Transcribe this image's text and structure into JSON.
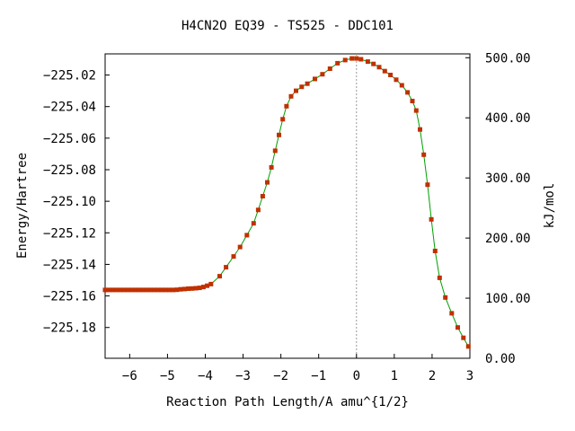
{
  "chart_data": {
    "type": "scatter",
    "title": "H4CN2O   EQ39 - TS525 - DDC101",
    "xlabel": "Reaction Path Length/A amu^{1/2}",
    "ylabel_left": "Energy/Hartree",
    "ylabel_right": "kJ/mol",
    "xlim": [
      -6.65,
      3.0
    ],
    "ylim_left": [
      -225.1995,
      -225.0066
    ],
    "ylim_right": [
      0.0,
      506.4
    ],
    "x_ticks": [
      -6,
      -5,
      -4,
      -3,
      -2,
      -1,
      0,
      1,
      2,
      3
    ],
    "x_tick_labels": [
      "−6",
      "−5",
      "−4",
      "−3",
      "−2",
      "−1",
      "0",
      "1",
      "2",
      "3"
    ],
    "y_left_ticks": [
      -225.18,
      -225.16,
      -225.14,
      -225.12,
      -225.1,
      -225.08,
      -225.06,
      -225.04,
      -225.02
    ],
    "y_left_tick_labels": [
      "−225.18",
      "−225.16",
      "−225.14",
      "−225.12",
      "−225.10",
      "−225.08",
      "−225.06",
      "−225.04",
      "−225.02"
    ],
    "y_right_ticks": [
      0,
      100,
      200,
      300,
      400,
      500
    ],
    "y_right_tick_labels": [
      "0.00",
      "100.00",
      "200.00",
      "300.00",
      "400.00",
      "500.00"
    ],
    "ts_marker_x": 0,
    "grid": false,
    "colors": {
      "points": "#c03000",
      "curve": "#00a000",
      "ts_line": "#999999",
      "axis": "#000000"
    },
    "series": [
      {
        "x": [
          -6.65,
          -6.55,
          -6.45,
          -6.35,
          -6.25,
          -6.15,
          -6.05,
          -5.95,
          -5.85,
          -5.75,
          -5.65,
          -5.55,
          -5.45,
          -5.35,
          -5.25,
          -5.15,
          -5.05,
          -4.95,
          -4.85,
          -4.75,
          -4.65,
          -4.55,
          -4.45,
          -4.35,
          -4.25,
          -4.15,
          -4.05,
          -3.95,
          -3.85,
          -3.62,
          -3.45,
          -3.25,
          -3.08,
          -2.9,
          -2.72,
          -2.6,
          -2.48,
          -2.36,
          -2.25,
          -2.15,
          -2.05,
          -1.95,
          -1.85,
          -1.73,
          -1.6,
          -1.45,
          -1.3,
          -1.1,
          -0.9,
          -0.7,
          -0.5,
          -0.3,
          -0.12,
          0.0,
          0.12,
          0.3,
          0.45,
          0.6,
          0.75,
          0.9,
          1.05,
          1.2,
          1.35,
          1.48,
          1.58,
          1.68,
          1.78,
          1.88,
          1.98,
          2.08,
          2.2,
          2.35,
          2.52,
          2.68,
          2.83,
          2.96
        ],
        "y": [
          -225.1562,
          -225.1562,
          -225.1562,
          -225.1562,
          -225.1562,
          -225.1562,
          -225.1562,
          -225.1562,
          -225.1562,
          -225.1562,
          -225.1562,
          -225.1562,
          -225.1562,
          -225.1562,
          -225.1562,
          -225.1562,
          -225.1562,
          -225.1562,
          -225.1562,
          -225.1561,
          -225.1558,
          -225.1556,
          -225.1554,
          -225.1553,
          -225.1551,
          -225.1549,
          -225.1543,
          -225.1535,
          -225.1525,
          -225.1475,
          -225.1418,
          -225.135,
          -225.129,
          -225.1215,
          -225.114,
          -225.1055,
          -225.0968,
          -225.088,
          -225.0785,
          -225.068,
          -225.058,
          -225.048,
          -225.0398,
          -225.0335,
          -225.03,
          -225.0275,
          -225.0255,
          -225.0225,
          -225.0195,
          -225.016,
          -225.0125,
          -225.0105,
          -225.0095,
          -225.0095,
          -225.01,
          -225.0115,
          -225.013,
          -225.015,
          -225.0175,
          -225.02,
          -225.023,
          -225.0265,
          -225.031,
          -225.0365,
          -225.0425,
          -225.0545,
          -225.0705,
          -225.0895,
          -225.1115,
          -225.1315,
          -225.1485,
          -225.161,
          -225.171,
          -225.18,
          -225.1865,
          -225.192
        ]
      }
    ]
  }
}
